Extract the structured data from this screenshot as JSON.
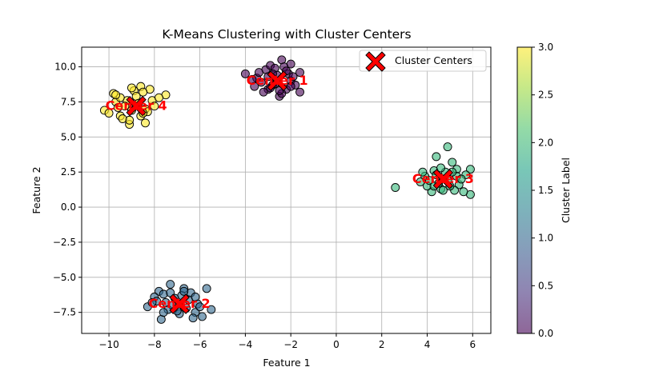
{
  "chart_data": {
    "type": "scatter",
    "title": "K-Means Clustering with Cluster Centers",
    "xlabel": "Feature 1",
    "ylabel": "Feature 2",
    "xlim": [
      -11.2,
      6.8
    ],
    "ylim": [
      -9.0,
      11.4
    ],
    "xticks": [
      -10,
      -8,
      -6,
      -4,
      -2,
      0,
      2,
      4,
      6
    ],
    "xtick_labels": [
      "−10",
      "−8",
      "−6",
      "−4",
      "−2",
      "0",
      "2",
      "4",
      "6"
    ],
    "yticks": [
      -7.5,
      -5.0,
      -2.5,
      0.0,
      2.5,
      5.0,
      7.5,
      10.0
    ],
    "ytick_labels": [
      "−7.5",
      "−5.0",
      "−2.5",
      "0.0",
      "2.5",
      "5.0",
      "7.5",
      "10.0"
    ],
    "grid": true,
    "legend": {
      "placement": "top-right",
      "entries": [
        "Cluster Centers"
      ]
    },
    "colorbar": {
      "label": "Cluster Label",
      "range": [
        0.0,
        3.0
      ],
      "ticks": [
        0.0,
        0.5,
        1.0,
        1.5,
        2.0,
        2.5,
        3.0
      ],
      "tick_labels": [
        "0.0",
        "0.5",
        "1.0",
        "1.5",
        "2.0",
        "2.5",
        "3.0"
      ],
      "colormap": "viridis"
    },
    "colors": {
      "cluster_0": "#440154",
      "cluster_1": "#31688e",
      "cluster_2": "#35b779",
      "cluster_3": "#fde725",
      "center_marker": "#ff0000",
      "center_label": "#ff0000",
      "grid": "#b0b0b0"
    },
    "centers": [
      {
        "label": "Center 1",
        "x": -2.6,
        "y": 9.0
      },
      {
        "label": "Center 2",
        "x": -6.9,
        "y": -6.9
      },
      {
        "label": "Center 3",
        "x": 4.7,
        "y": 2.0
      },
      {
        "label": "Center 4",
        "x": -8.8,
        "y": 7.2
      }
    ],
    "clusters": [
      {
        "label_value": 0,
        "points": [
          [
            -3.1,
            9.8
          ],
          [
            -2.4,
            10.5
          ],
          [
            -2.0,
            10.2
          ],
          [
            -1.6,
            9.6
          ],
          [
            -3.5,
            9.2
          ],
          [
            -4.0,
            9.5
          ],
          [
            -2.8,
            8.7
          ],
          [
            -2.2,
            8.4
          ],
          [
            -2.5,
            7.9
          ],
          [
            -1.6,
            8.2
          ],
          [
            -3.0,
            8.4
          ],
          [
            -3.3,
            8.9
          ],
          [
            -2.0,
            9.0
          ],
          [
            -2.6,
            9.4
          ],
          [
            -3.6,
            8.6
          ],
          [
            -2.9,
            10.1
          ],
          [
            -2.1,
            9.5
          ],
          [
            -3.2,
            8.2
          ],
          [
            -2.4,
            8.1
          ],
          [
            -1.8,
            8.7
          ],
          [
            -2.7,
            9.9
          ],
          [
            -3.4,
            9.6
          ],
          [
            -2.3,
            10.0
          ],
          [
            -2.9,
            8.5
          ],
          [
            -2.0,
            8.6
          ],
          [
            -3.0,
            9.3
          ],
          [
            -2.5,
            8.3
          ],
          [
            -2.7,
            8.8
          ],
          [
            -1.9,
            9.3
          ],
          [
            -3.7,
            9.1
          ],
          [
            -2.2,
            9.7
          ],
          [
            -2.8,
            9.5
          ]
        ]
      },
      {
        "label_value": 1,
        "points": [
          [
            -7.3,
            -5.5
          ],
          [
            -5.7,
            -5.8
          ],
          [
            -7.8,
            -6.0
          ],
          [
            -6.7,
            -5.8
          ],
          [
            -8.0,
            -6.4
          ],
          [
            -7.6,
            -6.2
          ],
          [
            -8.3,
            -7.1
          ],
          [
            -7.4,
            -7.3
          ],
          [
            -6.2,
            -7.5
          ],
          [
            -5.9,
            -7.8
          ],
          [
            -5.5,
            -7.3
          ],
          [
            -7.7,
            -8.0
          ],
          [
            -6.3,
            -7.9
          ],
          [
            -6.9,
            -7.6
          ],
          [
            -7.1,
            -6.5
          ],
          [
            -6.5,
            -6.6
          ],
          [
            -6.1,
            -6.9
          ],
          [
            -7.9,
            -6.7
          ],
          [
            -6.6,
            -7.2
          ],
          [
            -7.2,
            -7.0
          ],
          [
            -6.8,
            -6.3
          ],
          [
            -7.5,
            -6.8
          ],
          [
            -6.4,
            -6.1
          ],
          [
            -7.0,
            -7.4
          ],
          [
            -6.0,
            -7.1
          ],
          [
            -8.1,
            -6.8
          ],
          [
            -7.6,
            -7.5
          ],
          [
            -6.7,
            -6.0
          ],
          [
            -7.3,
            -6.1
          ],
          [
            -6.2,
            -6.4
          ]
        ]
      },
      {
        "label_value": 2,
        "points": [
          [
            2.6,
            1.4
          ],
          [
            4.4,
            3.6
          ],
          [
            4.9,
            4.3
          ],
          [
            5.9,
            0.9
          ],
          [
            5.6,
            1.1
          ],
          [
            5.9,
            2.7
          ],
          [
            5.3,
            2.7
          ],
          [
            5.1,
            3.2
          ],
          [
            4.2,
            1.1
          ],
          [
            4.6,
            1.3
          ],
          [
            4.0,
            1.5
          ],
          [
            3.9,
            2.2
          ],
          [
            4.3,
            2.6
          ],
          [
            4.8,
            2.5
          ],
          [
            5.4,
            1.6
          ],
          [
            5.2,
            1.2
          ],
          [
            4.6,
            2.8
          ],
          [
            3.8,
            2.5
          ],
          [
            4.1,
            1.9
          ],
          [
            5.0,
            1.5
          ],
          [
            5.3,
            2.2
          ],
          [
            4.5,
            1.7
          ],
          [
            4.9,
            1.9
          ],
          [
            5.7,
            2.3
          ],
          [
            3.7,
            1.8
          ],
          [
            4.4,
            2.3
          ],
          [
            5.1,
            2.5
          ],
          [
            4.7,
            1.2
          ],
          [
            5.5,
            2.0
          ],
          [
            4.3,
            1.5
          ]
        ]
      },
      {
        "label_value": 3,
        "points": [
          [
            -10.2,
            6.9
          ],
          [
            -9.8,
            8.1
          ],
          [
            -8.6,
            8.6
          ],
          [
            -8.2,
            8.4
          ],
          [
            -7.5,
            8.0
          ],
          [
            -8.4,
            6.0
          ],
          [
            -9.1,
            5.9
          ],
          [
            -9.5,
            6.5
          ],
          [
            -8.9,
            8.3
          ],
          [
            -9.2,
            7.6
          ],
          [
            -8.1,
            7.6
          ],
          [
            -7.8,
            7.8
          ],
          [
            -8.6,
            6.5
          ],
          [
            -9.0,
            6.9
          ],
          [
            -9.7,
            7.5
          ],
          [
            -10.0,
            6.7
          ],
          [
            -8.4,
            7.0
          ],
          [
            -9.3,
            7.2
          ],
          [
            -8.8,
            7.9
          ],
          [
            -9.5,
            7.8
          ],
          [
            -8.3,
            6.8
          ],
          [
            -9.1,
            6.2
          ],
          [
            -8.5,
            8.2
          ],
          [
            -9.7,
            8.0
          ],
          [
            -8.7,
            7.4
          ],
          [
            -9.4,
            6.3
          ],
          [
            -8.0,
            7.2
          ],
          [
            -9.0,
            8.5
          ],
          [
            -8.5,
            6.7
          ],
          [
            -9.6,
            7.1
          ]
        ]
      }
    ]
  }
}
